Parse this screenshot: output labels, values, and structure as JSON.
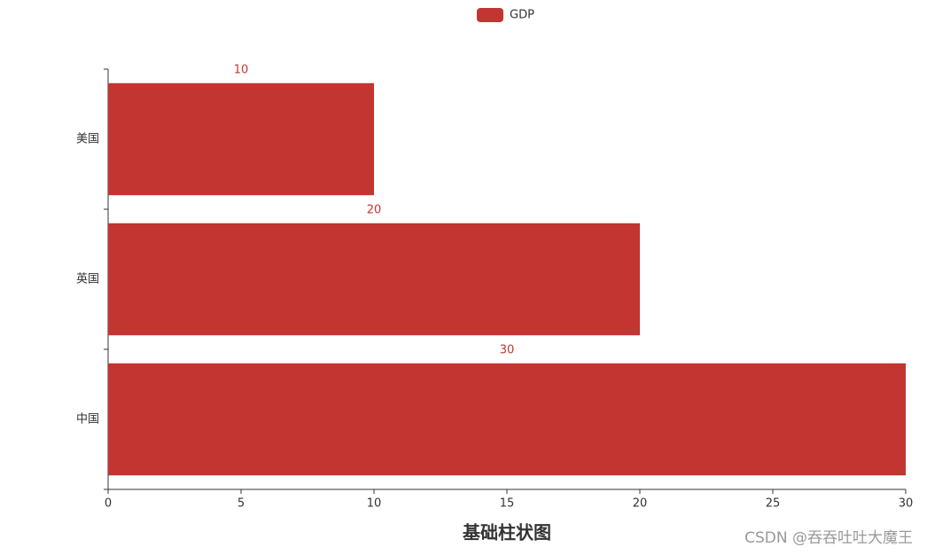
{
  "chart_data": {
    "type": "hbar",
    "title": "基础柱状图",
    "watermark": "CSDN @吞吞吐吐大魔王",
    "categories": [
      "中国",
      "英国",
      "美国"
    ],
    "series": [
      {
        "name": "GDP",
        "color": "#c23531",
        "values": [
          30,
          20,
          10
        ]
      }
    ],
    "xlim": [
      0,
      30
    ],
    "xticks": [
      0,
      5,
      10,
      15,
      20,
      25,
      30
    ]
  }
}
